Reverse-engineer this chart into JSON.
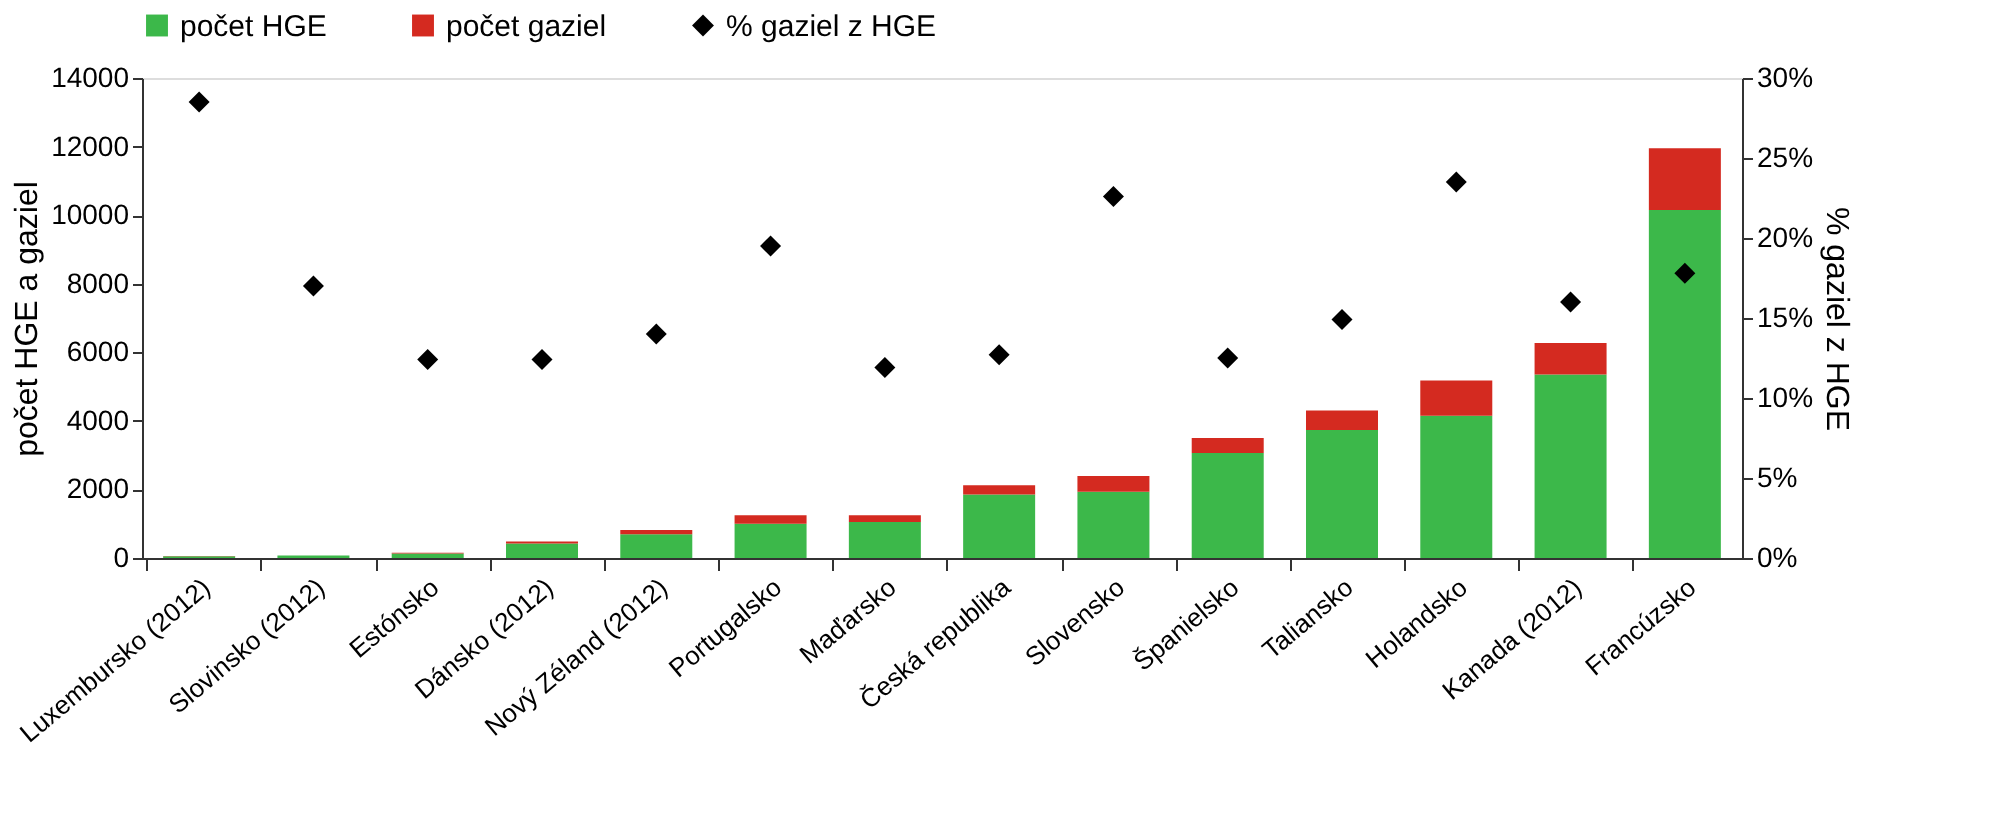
{
  "chart_data": {
    "type": "bar",
    "stacked": true,
    "categories": [
      "Luxembursko (2012)",
      "Slovinsko (2012)",
      "Estónsko",
      "Dánsko (2012)",
      "Nový Zéland (2012)",
      "Portugalsko",
      "Maďarsko",
      "Česká republika",
      "Slovensko",
      "Španielsko",
      "Taliansko",
      "Holandsko",
      "Kanada (2012)",
      "Francúzsko"
    ],
    "series": [
      {
        "name": "počet HGE",
        "color": "#3cb84a",
        "values": [
          50,
          70,
          130,
          420,
          690,
          1000,
          1050,
          1850,
          1930,
          3060,
          3730,
          4150,
          5350,
          10150
        ]
      },
      {
        "name": "počet gaziel",
        "color": "#d42a20",
        "values": [
          10,
          null,
          20,
          60,
          130,
          250,
          200,
          270,
          460,
          440,
          570,
          1030,
          920,
          1800
        ]
      },
      {
        "name": "% gaziel z HGE",
        "type": "scatter",
        "axis": "y2",
        "color": "#000000",
        "marker": "diamond",
        "values": [
          28.5,
          17.0,
          12.4,
          12.4,
          14.0,
          19.5,
          11.9,
          12.7,
          22.6,
          12.5,
          14.9,
          23.5,
          16.0,
          17.8
        ]
      }
    ],
    "ylabel": "počet HGE a gaziel",
    "y2label": "% gaziel z HGE",
    "ylim": [
      0,
      14000
    ],
    "yticks": [
      0,
      2000,
      4000,
      6000,
      8000,
      10000,
      12000,
      14000
    ],
    "y2lim": [
      0,
      30
    ],
    "y2ticks": [
      {
        "value": 0,
        "label": "0%"
      },
      {
        "value": 5,
        "label": "5%"
      },
      {
        "value": 10,
        "label": "10%"
      },
      {
        "value": 15,
        "label": "15%"
      },
      {
        "value": 20,
        "label": "20%"
      },
      {
        "value": 25,
        "label": "25%"
      },
      {
        "value": 30,
        "label": "30%"
      }
    ],
    "legend": "top",
    "grid": false
  }
}
